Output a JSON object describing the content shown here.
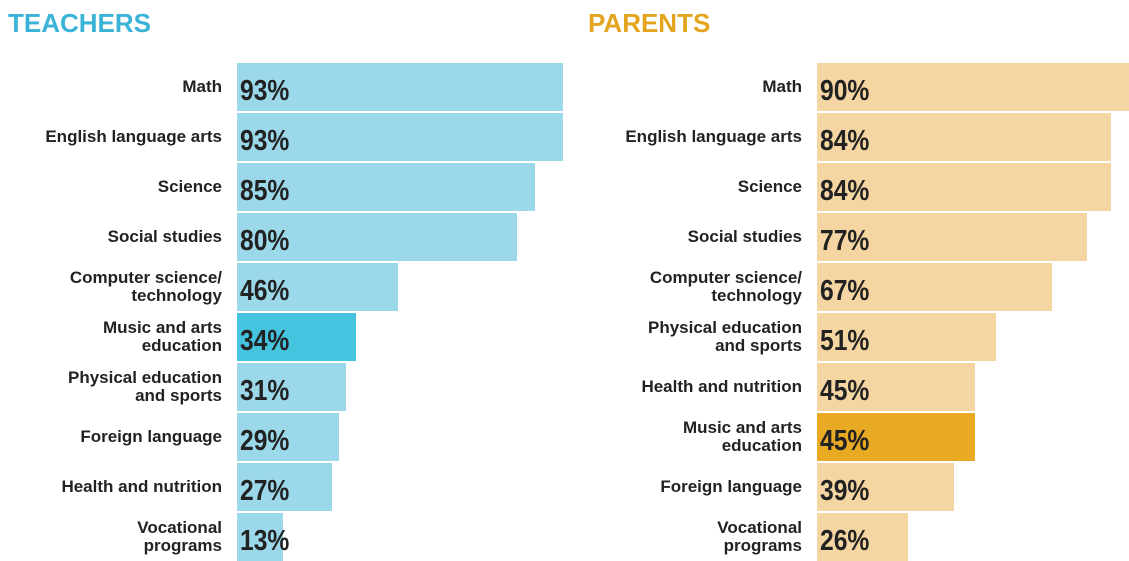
{
  "chart_data": [
    {
      "type": "bar",
      "title": "TEACHERS",
      "title_color": "#3bb3d6",
      "categories": [
        "Math",
        "English language arts",
        "Science",
        "Social studies",
        "Computer science/\ntechnology",
        "Music and arts\neducation",
        "Physical education\nand sports",
        "Foreign language",
        "Health and nutrition",
        "Vocational\nprograms"
      ],
      "values": [
        93,
        93,
        85,
        80,
        46,
        34,
        31,
        29,
        27,
        13
      ],
      "value_labels": [
        "93%",
        "93%",
        "85%",
        "80%",
        "46%",
        "34%",
        "31%",
        "29%",
        "27%",
        "13%"
      ],
      "colors": [
        "#9bd9ea",
        "#9bd9ea",
        "#9bd9ea",
        "#9bd9ea",
        "#9bd9ea",
        "#45c4e0",
        "#9bd9ea",
        "#9bd9ea",
        "#9bd9ea",
        "#9bd9ea"
      ]
    },
    {
      "type": "bar",
      "title": "PARENTS",
      "title_color": "#e3a51e",
      "categories": [
        "Math",
        "English language arts",
        "Science",
        "Social studies",
        "Computer science/\ntechnology",
        "Physical education\nand sports",
        "Health and nutrition",
        "Music and arts\neducation",
        "Foreign language",
        "Vocational\nprograms"
      ],
      "values": [
        90,
        84,
        84,
        77,
        67,
        51,
        45,
        45,
        39,
        26
      ],
      "value_labels": [
        "90%",
        "84%",
        "84%",
        "77%",
        "67%",
        "51%",
        "45%",
        "45%",
        "39%",
        "26%"
      ],
      "colors": [
        "#f5d6a3",
        "#f5d6a3",
        "#f5d6a3",
        "#f5d6a3",
        "#f5d6a3",
        "#f5d6a3",
        "#f5d6a3",
        "#e8a923",
        "#f5d6a3",
        "#f5d6a3"
      ]
    }
  ]
}
